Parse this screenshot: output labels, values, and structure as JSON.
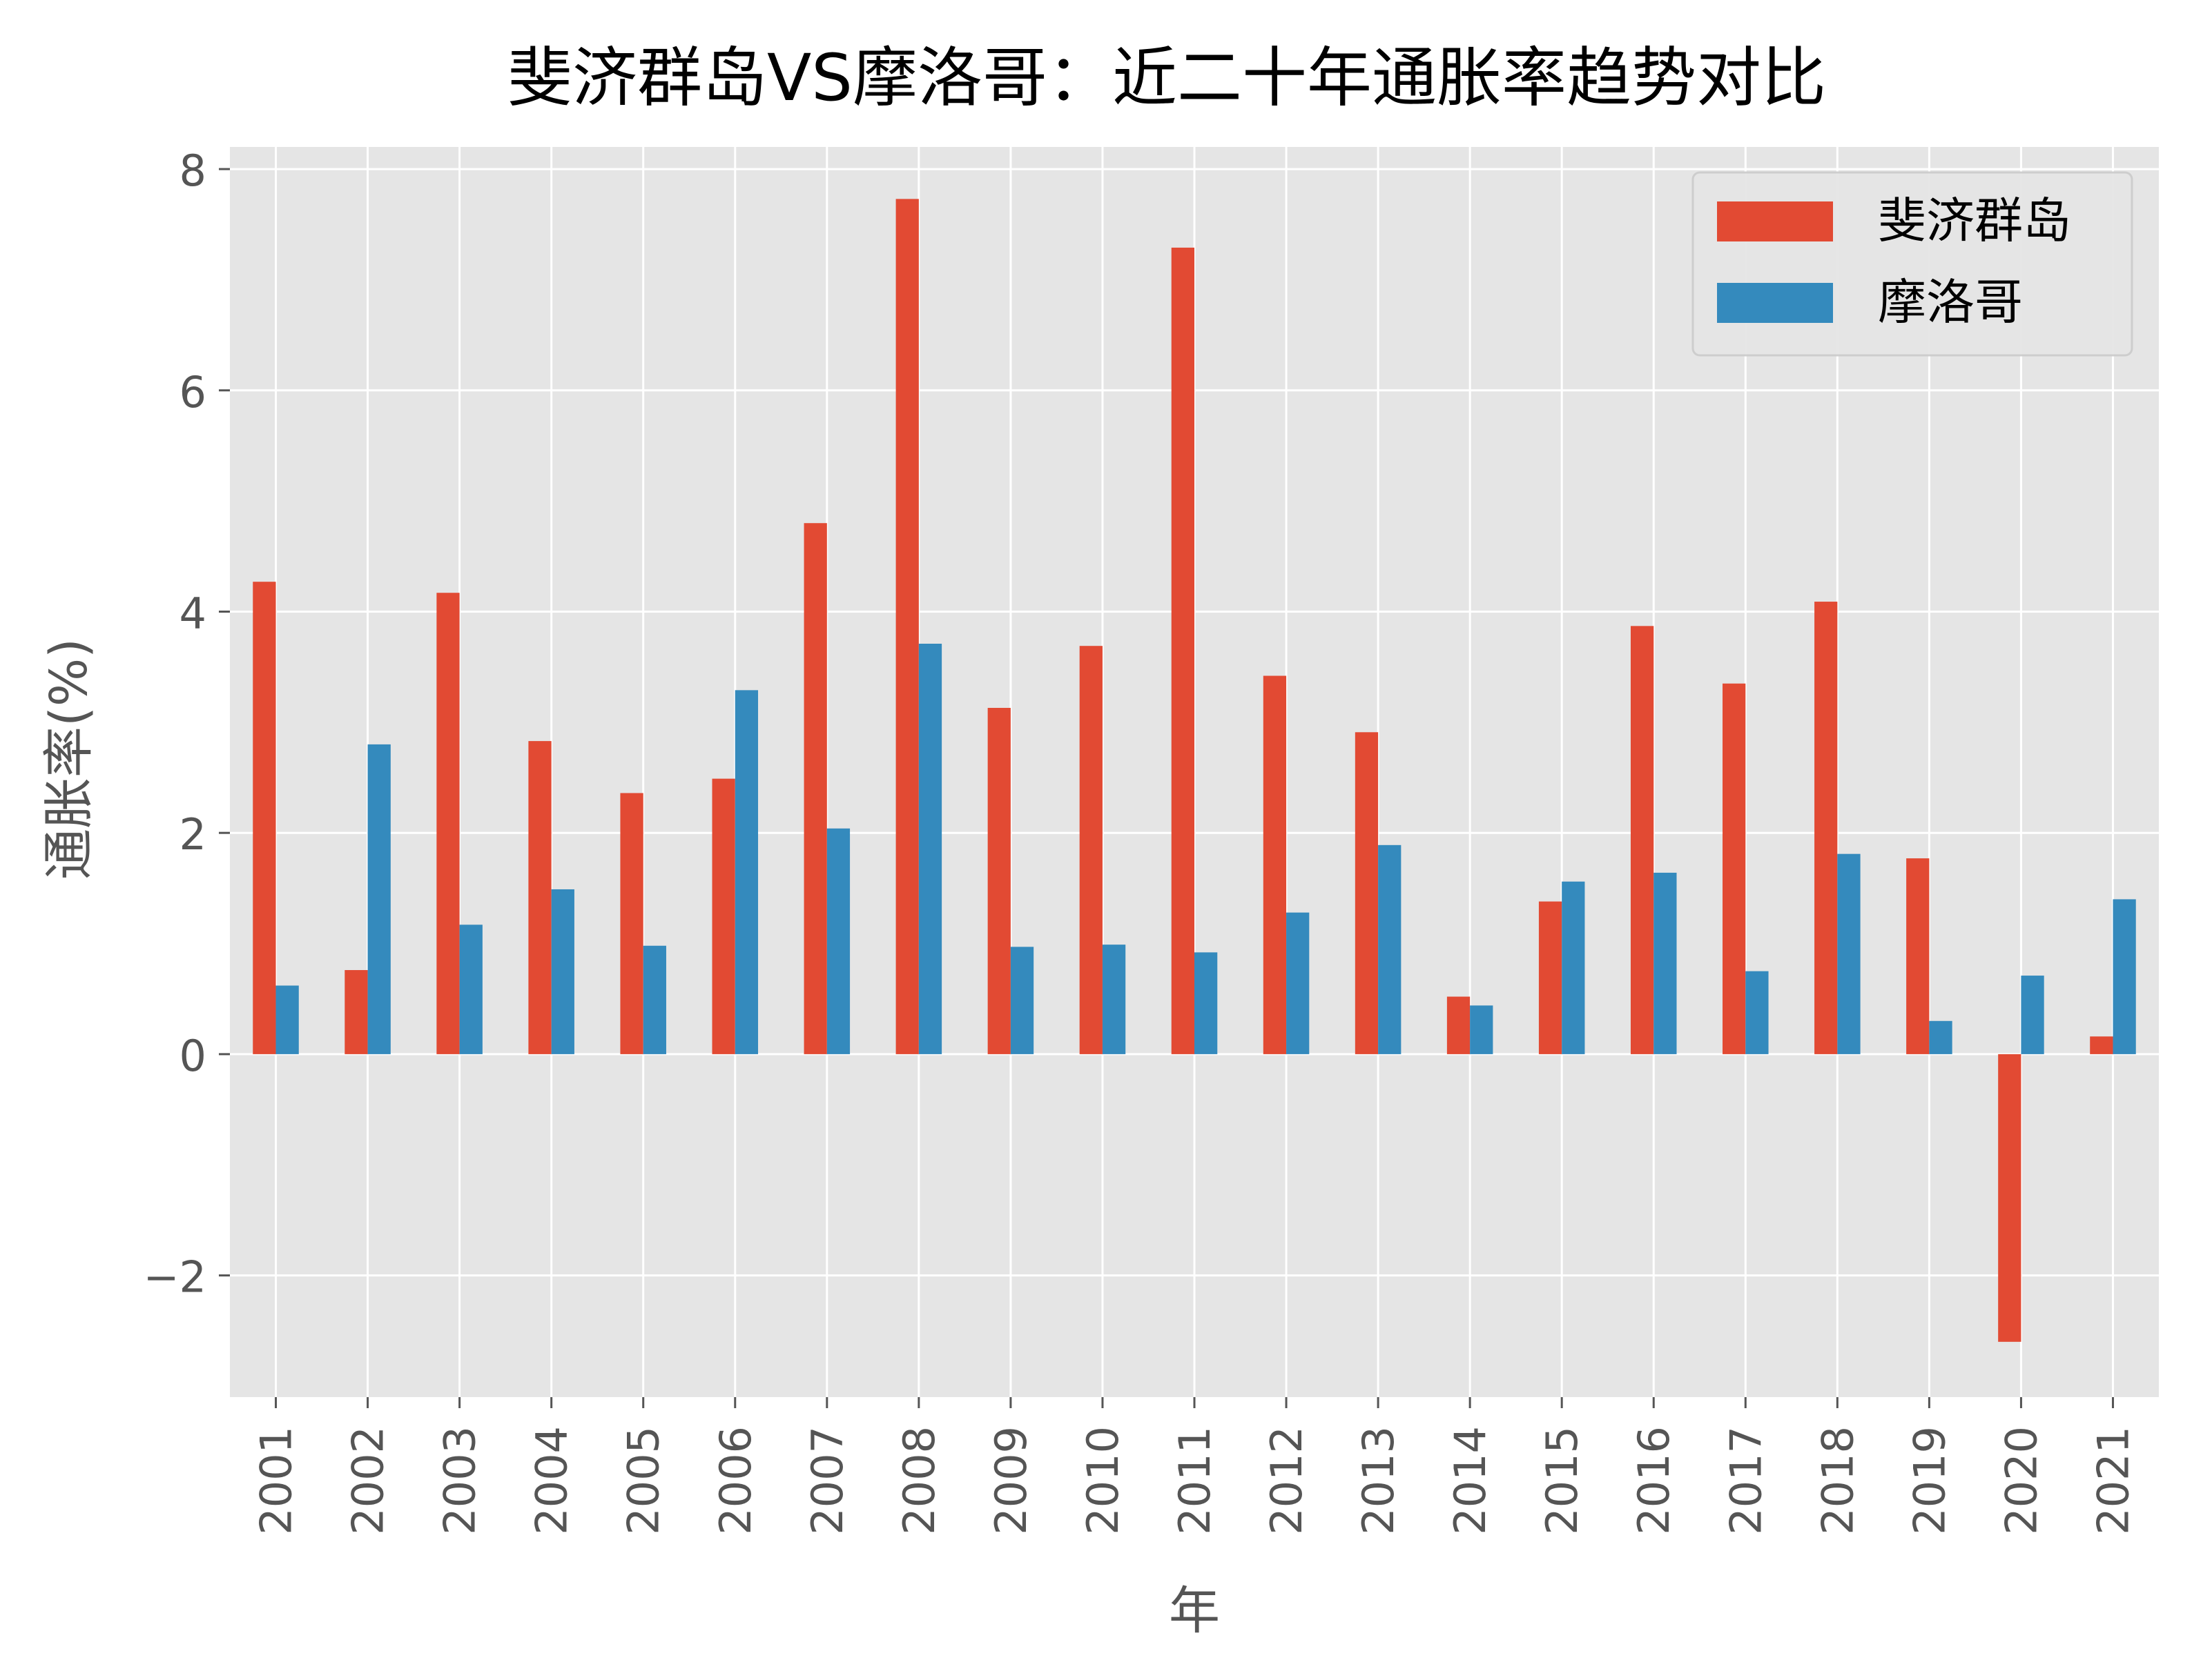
{
  "chart_data": {
    "type": "bar",
    "title": "斐济群岛VS摩洛哥：近二十年通胀率趋势对比",
    "xlabel": "年",
    "ylabel": "通胀率(%)",
    "ylim": [
      -3.1,
      8.2
    ],
    "yticks": [
      -2,
      0,
      2,
      4,
      6,
      8
    ],
    "ytick_labels": [
      "−2",
      "0",
      "2",
      "4",
      "6",
      "8"
    ],
    "categories": [
      "2001",
      "2002",
      "2003",
      "2004",
      "2005",
      "2006",
      "2007",
      "2008",
      "2009",
      "2010",
      "2011",
      "2012",
      "2013",
      "2014",
      "2015",
      "2016",
      "2017",
      "2018",
      "2019",
      "2020",
      "2021"
    ],
    "series": [
      {
        "name": "斐济群岛",
        "color": "#E24A33",
        "values": [
          4.27,
          0.76,
          4.17,
          2.83,
          2.36,
          2.49,
          4.8,
          7.73,
          3.13,
          3.69,
          7.29,
          3.42,
          2.91,
          0.52,
          1.38,
          3.87,
          3.35,
          4.09,
          1.77,
          -2.6,
          0.16
        ]
      },
      {
        "name": "摩洛哥",
        "color": "#348ABD",
        "values": [
          0.62,
          2.8,
          1.17,
          1.49,
          0.98,
          3.29,
          2.04,
          3.71,
          0.97,
          0.99,
          0.92,
          1.28,
          1.89,
          0.44,
          1.56,
          1.64,
          0.75,
          1.81,
          0.3,
          0.71,
          1.4
        ]
      }
    ],
    "grid": true,
    "legend_position": "top-right",
    "colors": {
      "plot_background": "#E5E5E5",
      "grid": "#FFFFFF",
      "tick_text": "#555555"
    }
  }
}
